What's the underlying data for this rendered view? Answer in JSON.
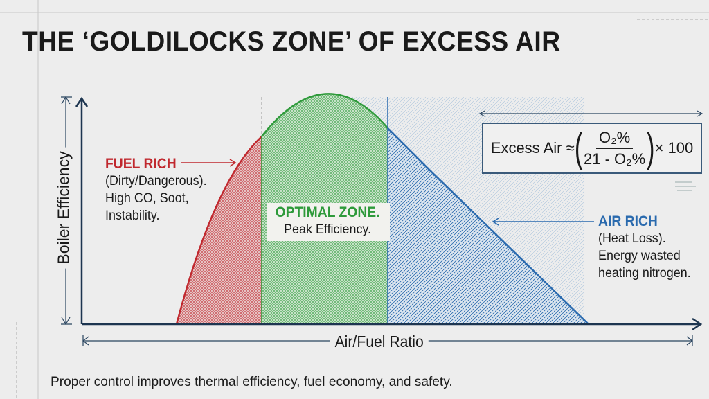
{
  "title": "THE ‘GOLDILOCKS ZONE’ OF EXCESS AIR",
  "axes": {
    "y_label": "Boiler Efficiency",
    "x_label": "Air/Fuel Ratio"
  },
  "zones": {
    "fuel_rich": {
      "title": "FUEL RICH",
      "lines": [
        "(Dirty/Dangerous).",
        "High CO, Soot,",
        "Instability."
      ],
      "color": "#c0282e"
    },
    "optimal": {
      "title": "OPTIMAL ZONE.",
      "subtitle": "Peak Efficiency.",
      "color": "#2e9a3a"
    },
    "air_rich": {
      "title": "AIR RICH",
      "lines": [
        "(Heat Loss).",
        "Energy wasted",
        "heating nitrogen."
      ],
      "color": "#2a6aae"
    }
  },
  "formula": {
    "lhs": "Excess Air ≈",
    "numerator": "O₂%",
    "denominator": "21 - O₂%",
    "multiplier": "× 100"
  },
  "footer": "Proper control improves thermal efficiency, fuel economy, and safety."
}
